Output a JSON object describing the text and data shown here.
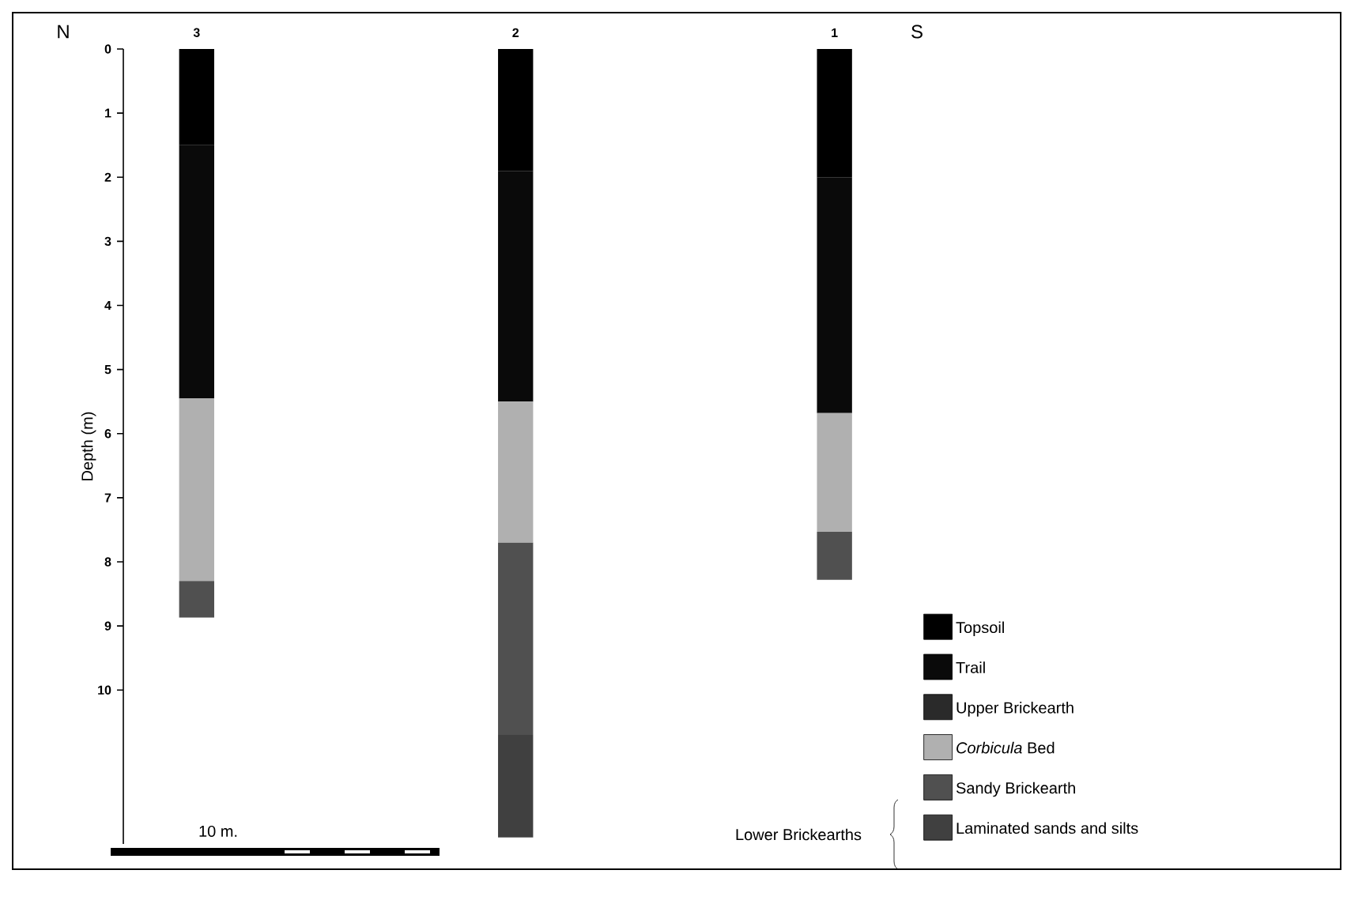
{
  "chart_data": {
    "type": "bar",
    "stacked": true,
    "ylabel": "Depth (m)",
    "categories": [
      "3",
      "2",
      "1"
    ],
    "ylim": [
      12.4,
      0
    ],
    "yticks": [
      0,
      1,
      2,
      3,
      4,
      5,
      6,
      7,
      8,
      9,
      10
    ],
    "series": [
      {
        "name": "Topsoil",
        "color": "#000000",
        "values": [
          1.5,
          1.9,
          2.0
        ]
      },
      {
        "name": "Trail",
        "color": "#0a0a0a",
        "values": [
          3.95,
          3.6,
          3.68
        ]
      },
      {
        "name": "Upper Brickearth",
        "color": "#2a2a2a",
        "values": [
          null,
          null,
          null
        ]
      },
      {
        "name": "*Corbicula* Bed",
        "color": "#b0b0b0",
        "values": [
          2.85,
          2.2,
          1.85
        ]
      },
      {
        "name": "Sandy Brickearth",
        "color": "#505050",
        "values": [
          0.57,
          3.0,
          0.75
        ]
      },
      {
        "name": "Laminated sands and silts",
        "color": "#404040",
        "values": [
          null,
          1.6,
          null
        ]
      }
    ],
    "legend": "bottom right",
    "annotations": [
      "N",
      "S",
      "10 m.",
      "Lower Brickearths"
    ]
  }
}
